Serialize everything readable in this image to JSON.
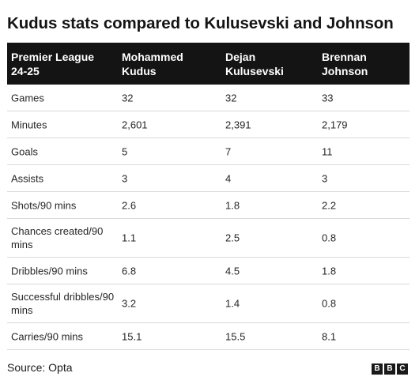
{
  "title": "Kudus stats compared to Kulusevski and Johnson",
  "table": {
    "headers": [
      "Premier League 24-25",
      "Mohammed Kudus",
      "Dejan Kulusevski",
      "Brennan Johnson"
    ],
    "rows": [
      [
        "Games",
        "32",
        "32",
        "33"
      ],
      [
        "Minutes",
        "2,601",
        "2,391",
        "2,179"
      ],
      [
        "Goals",
        "5",
        "7",
        "11"
      ],
      [
        "Assists",
        "3",
        "4",
        "3"
      ],
      [
        "Shots/90 mins",
        "2.6",
        "1.8",
        "2.2"
      ],
      [
        "Chances created/90 mins",
        "1.1",
        "2.5",
        "0.8"
      ],
      [
        "Dribbles/90 mins",
        "6.8",
        "4.5",
        "1.8"
      ],
      [
        "Successful dribbles/90 mins",
        "3.2",
        "1.4",
        "0.8"
      ],
      [
        "Carries/90 mins",
        "15.1",
        "15.5",
        "8.1"
      ]
    ]
  },
  "source": "Source: Opta",
  "logo": {
    "letters": [
      "B",
      "B",
      "C"
    ],
    "color": "#1a1a1a"
  }
}
